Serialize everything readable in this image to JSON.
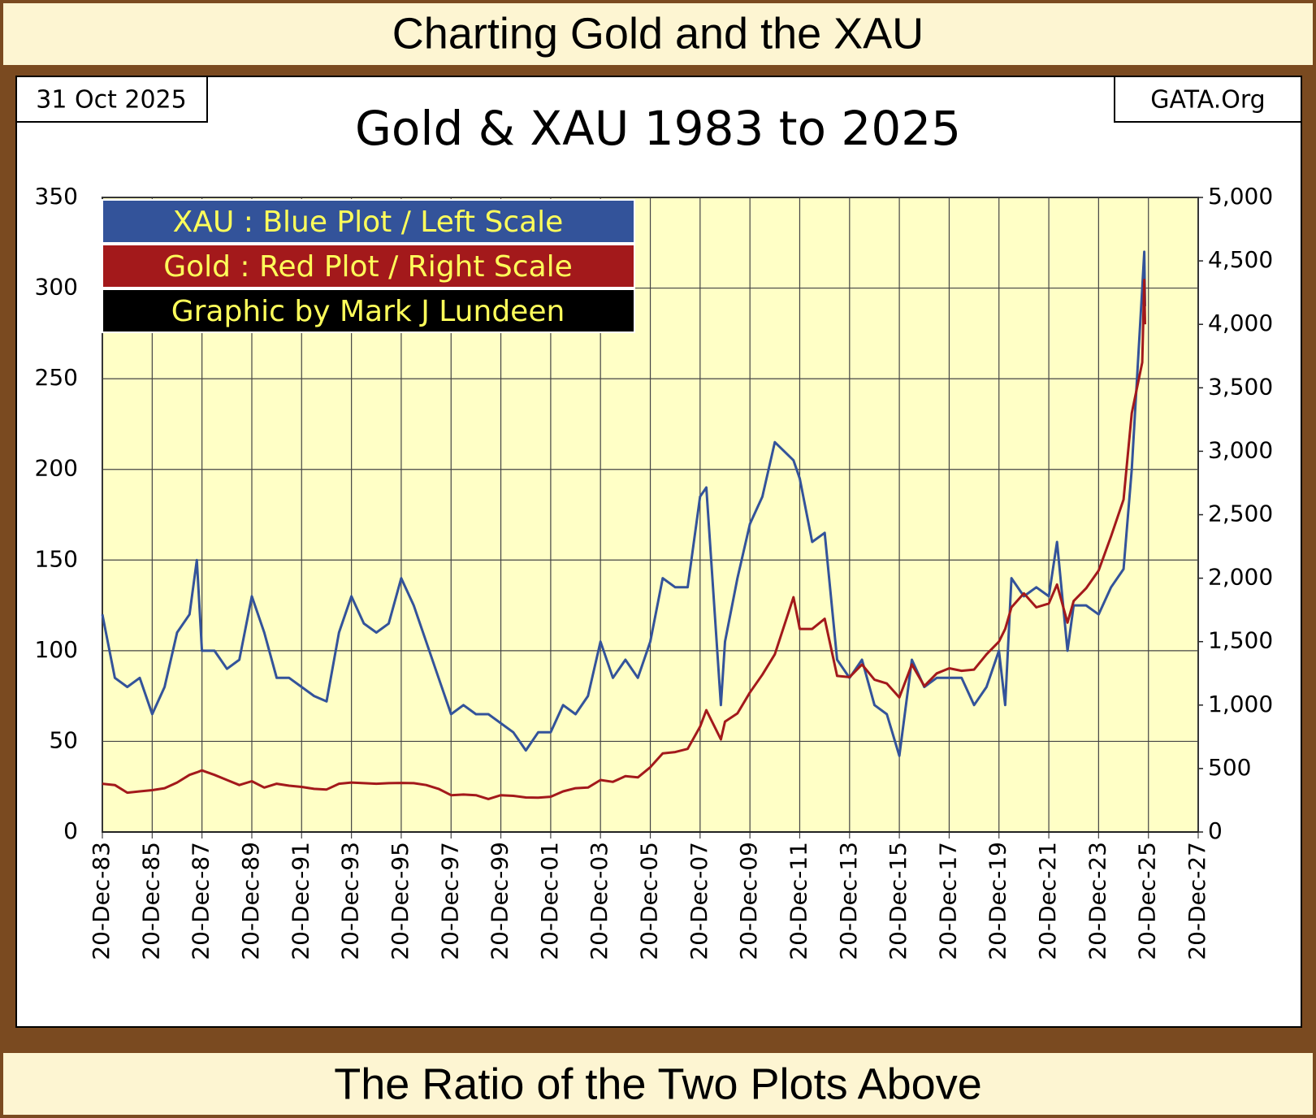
{
  "chart_data": {
    "type": "line",
    "header": "Charting Gold and the XAU",
    "footer": "The Ratio of the Two Plots Above",
    "date": "31 Oct 2025",
    "source": "GATA.Org",
    "title": "Gold & XAU 1983 to 2025",
    "credit": "Graphic by Mark J Lundeen",
    "legend": "upper left",
    "grid": true,
    "x": [
      "1983-12-20",
      "1984-06-20",
      "1984-12-20",
      "1985-06-20",
      "1985-12-20",
      "1986-06-20",
      "1986-12-20",
      "1987-06-20",
      "1987-10-05",
      "1987-12-20",
      "1988-06-20",
      "1988-12-20",
      "1989-06-20",
      "1989-12-20",
      "1990-06-20",
      "1990-12-20",
      "1991-06-20",
      "1991-12-20",
      "1992-06-20",
      "1992-12-20",
      "1993-06-20",
      "1993-12-20",
      "1994-06-20",
      "1994-12-20",
      "1995-06-20",
      "1995-12-20",
      "1996-06-20",
      "1996-12-20",
      "1997-06-20",
      "1997-12-20",
      "1998-06-20",
      "1998-12-20",
      "1999-06-20",
      "1999-12-20",
      "2000-06-20",
      "2000-12-20",
      "2001-06-20",
      "2001-12-20",
      "2002-06-20",
      "2002-12-20",
      "2003-06-20",
      "2003-12-20",
      "2004-06-20",
      "2004-12-20",
      "2005-06-20",
      "2005-12-20",
      "2006-06-20",
      "2006-12-20",
      "2007-06-20",
      "2007-12-20",
      "2008-03-20",
      "2008-10-20",
      "2008-12-20",
      "2009-06-20",
      "2009-12-20",
      "2010-06-20",
      "2010-12-20",
      "2011-09-20",
      "2011-12-20",
      "2012-06-20",
      "2012-12-20",
      "2013-06-20",
      "2013-12-20",
      "2014-06-20",
      "2014-12-20",
      "2015-06-20",
      "2015-12-20",
      "2016-06-20",
      "2016-12-20",
      "2017-06-20",
      "2017-12-20",
      "2018-06-20",
      "2018-12-20",
      "2019-06-20",
      "2019-12-20",
      "2020-03-20",
      "2020-06-20",
      "2020-12-20",
      "2021-06-20",
      "2021-12-20",
      "2022-04-20",
      "2022-09-20",
      "2022-12-20",
      "2023-06-20",
      "2023-12-20",
      "2024-06-20",
      "2024-12-20",
      "2025-04-20",
      "2025-09-20",
      "2025-10-20",
      "2025-10-31"
    ],
    "series": [
      {
        "name": "XAU : Blue Plot / Left Scale",
        "color": "#33539a",
        "axis": "y",
        "values": [
          120,
          85,
          80,
          85,
          65,
          80,
          110,
          120,
          150,
          100,
          100,
          90,
          95,
          130,
          110,
          85,
          85,
          80,
          75,
          72,
          110,
          130,
          115,
          110,
          115,
          140,
          125,
          105,
          85,
          65,
          70,
          65,
          65,
          60,
          55,
          45,
          55,
          55,
          70,
          65,
          75,
          105,
          85,
          95,
          85,
          105,
          140,
          135,
          135,
          185,
          190,
          70,
          105,
          140,
          170,
          185,
          215,
          205,
          195,
          160,
          165,
          95,
          85,
          95,
          70,
          65,
          42,
          95,
          80,
          85,
          85,
          85,
          70,
          80,
          100,
          70,
          140,
          130,
          135,
          130,
          160,
          100,
          125,
          125,
          120,
          135,
          145,
          200,
          300,
          320,
          290
        ]
      },
      {
        "name": "Gold : Red Plot / Right Scale",
        "color": "#a3191b",
        "axis": "y2",
        "values": [
          380,
          370,
          310,
          320,
          330,
          345,
          390,
          450,
          470,
          485,
          450,
          410,
          370,
          400,
          350,
          380,
          365,
          355,
          340,
          335,
          380,
          390,
          385,
          380,
          385,
          387,
          385,
          370,
          340,
          290,
          295,
          290,
          260,
          290,
          285,
          272,
          270,
          278,
          320,
          345,
          350,
          410,
          395,
          440,
          430,
          510,
          620,
          630,
          655,
          830,
          960,
          730,
          870,
          935,
          1100,
          1240,
          1400,
          1850,
          1600,
          1600,
          1680,
          1230,
          1220,
          1320,
          1200,
          1170,
          1060,
          1320,
          1150,
          1250,
          1290,
          1270,
          1280,
          1400,
          1500,
          1600,
          1770,
          1880,
          1770,
          1800,
          1950,
          1650,
          1820,
          1920,
          2060,
          2330,
          2620,
          3300,
          3700,
          4350,
          4000
        ]
      }
    ],
    "xlim": [
      "1983-12-20",
      "2027-12-20"
    ],
    "xticks": [
      {
        "value": "1983-12-20",
        "label": "20-Dec-83"
      },
      {
        "value": "1985-12-20",
        "label": "20-Dec-85"
      },
      {
        "value": "1987-12-20",
        "label": "20-Dec-87"
      },
      {
        "value": "1989-12-20",
        "label": "20-Dec-89"
      },
      {
        "value": "1991-12-20",
        "label": "20-Dec-91"
      },
      {
        "value": "1993-12-20",
        "label": "20-Dec-93"
      },
      {
        "value": "1995-12-20",
        "label": "20-Dec-95"
      },
      {
        "value": "1997-12-20",
        "label": "20-Dec-97"
      },
      {
        "value": "1999-12-20",
        "label": "20-Dec-99"
      },
      {
        "value": "2001-12-20",
        "label": "20-Dec-01"
      },
      {
        "value": "2003-12-20",
        "label": "20-Dec-03"
      },
      {
        "value": "2005-12-20",
        "label": "20-Dec-05"
      },
      {
        "value": "2007-12-20",
        "label": "20-Dec-07"
      },
      {
        "value": "2009-12-20",
        "label": "20-Dec-09"
      },
      {
        "value": "2011-12-20",
        "label": "20-Dec-11"
      },
      {
        "value": "2013-12-20",
        "label": "20-Dec-13"
      },
      {
        "value": "2015-12-20",
        "label": "20-Dec-15"
      },
      {
        "value": "2017-12-20",
        "label": "20-Dec-17"
      },
      {
        "value": "2019-12-20",
        "label": "20-Dec-19"
      },
      {
        "value": "2021-12-20",
        "label": "20-Dec-21"
      },
      {
        "value": "2023-12-20",
        "label": "20-Dec-23"
      },
      {
        "value": "2025-12-20",
        "label": "20-Dec-25"
      },
      {
        "value": "2027-12-20",
        "label": "20-Dec-27"
      }
    ],
    "ylim": [
      0,
      350
    ],
    "yticks": [
      0,
      50,
      100,
      150,
      200,
      250,
      300,
      350
    ],
    "y2lim": [
      0,
      5000
    ],
    "y2ticks": [
      0,
      500,
      {
        "value": 1000,
        "label": "1,000"
      },
      {
        "value": 1500,
        "label": "1,500"
      },
      {
        "value": 2000,
        "label": "2,000"
      },
      {
        "value": 2500,
        "label": "2,500"
      },
      {
        "value": 3000,
        "label": "3,000"
      },
      {
        "value": 3500,
        "label": "3,500"
      },
      {
        "value": 4000,
        "label": "4,000"
      },
      {
        "value": 4500,
        "label": "4,500"
      },
      {
        "value": 5000,
        "label": "5,000"
      }
    ]
  }
}
